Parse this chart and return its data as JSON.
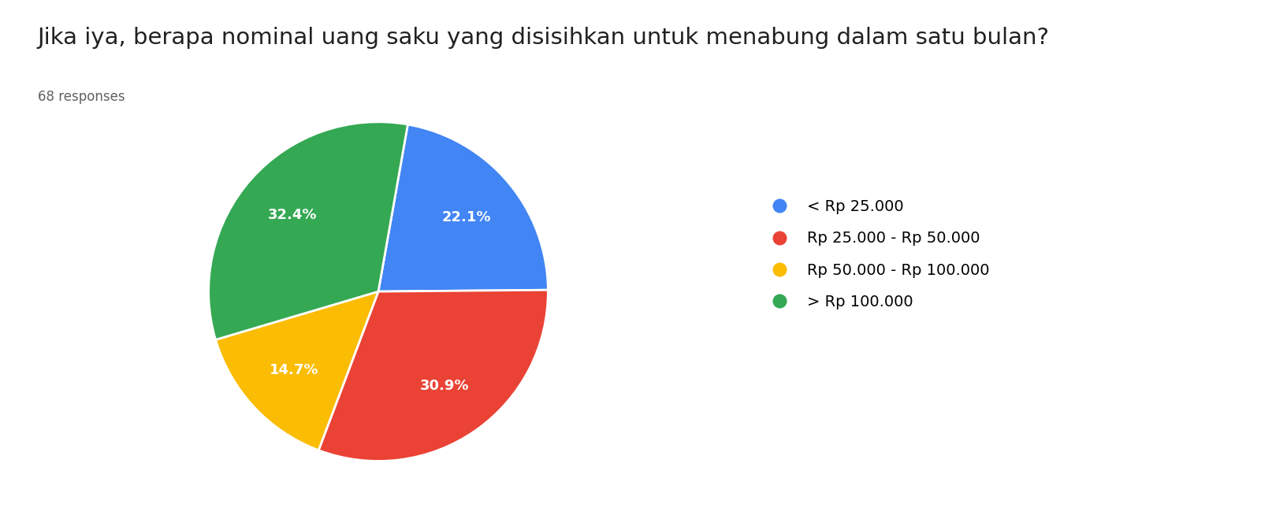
{
  "title": "Jika iya, berapa nominal uang saku yang disisihkan untuk menabung dalam satu bulan?",
  "subtitle": "68 responses",
  "labels": [
    "< Rp 25.000",
    "Rp 25.000 - Rp 50.000",
    "Rp 50.000 - Rp 100.000",
    "> Rp 100.000"
  ],
  "percentages": [
    22.1,
    30.9,
    14.7,
    32.4
  ],
  "colors": [
    "#4285F4",
    "#EA4335",
    "#FBBC04",
    "#34A853"
  ],
  "background_color": "#ffffff",
  "title_fontsize": 21,
  "subtitle_fontsize": 12,
  "legend_fontsize": 14,
  "autopct_fontsize": 13,
  "startangle": 80
}
